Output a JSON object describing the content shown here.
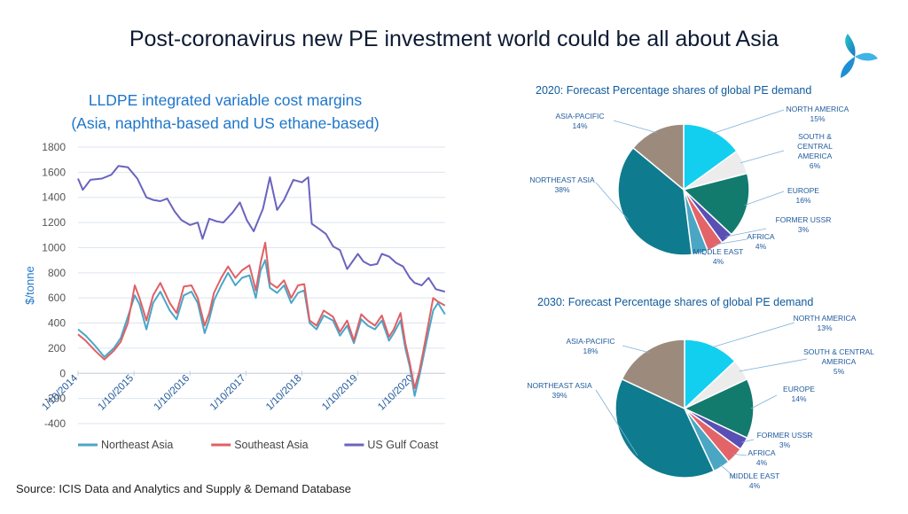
{
  "slide": {
    "title": "Post-coronavirus new PE investment world could be all about Asia",
    "source": "Source: ICIS Data and Analytics and Supply & Demand Database"
  },
  "colors": {
    "northeast_asia": "#4aa6c8",
    "southeast_asia": "#e06064",
    "us_gulf": "#6a64be",
    "pie_north_america": "#12cff0",
    "pie_south_central_america": "#ececec",
    "pie_europe": "#137a6e",
    "pie_former_ussr": "#5a4fb5",
    "pie_africa": "#e36468",
    "pie_middle_east": "#4ba6c4",
    "pie_northeast_asia": "#0e7c8e",
    "pie_asia_pacific": "#9c8b7d"
  },
  "chart_data": [
    {
      "type": "line",
      "title": "LLDPE integrated variable cost margins (Asia, naphtha-based and US ethane-based)",
      "title_lines": [
        "LLDPE integrated variable cost margins",
        "(Asia, naphtha-based and US ethane-based)"
      ],
      "ylabel": "$/tonne",
      "ylim": [
        -400,
        1800
      ],
      "yticks": [
        -400,
        -200,
        0,
        200,
        400,
        600,
        800,
        1000,
        1200,
        1400,
        1600,
        1800
      ],
      "xlim": [
        "2014-01-10",
        "2020-08-01"
      ],
      "xticks": [
        "2014-01-10",
        "2015-01-10",
        "2016-01-10",
        "2017-01-10",
        "2018-01-10",
        "2019-01-10",
        "2020-01-10"
      ],
      "xtick_labels": [
        "1/10/2014",
        "1/10/2015",
        "1/10/2016",
        "1/10/2017",
        "1/10/2018",
        "1/10/2019",
        "1/10/2020"
      ],
      "grid": true,
      "legend": "bottom",
      "series": [
        {
          "name": "Northeast Asia",
          "color_key": "northeast_asia",
          "points": [
            [
              "2014-01-10",
              350
            ],
            [
              "2014-03-01",
              300
            ],
            [
              "2014-05-01",
              220
            ],
            [
              "2014-07-01",
              130
            ],
            [
              "2014-09-01",
              200
            ],
            [
              "2014-10-15",
              280
            ],
            [
              "2014-12-01",
              450
            ],
            [
              "2015-01-15",
              620
            ],
            [
              "2015-02-15",
              550
            ],
            [
              "2015-04-01",
              350
            ],
            [
              "2015-05-15",
              560
            ],
            [
              "2015-07-01",
              650
            ],
            [
              "2015-09-01",
              500
            ],
            [
              "2015-10-15",
              430
            ],
            [
              "2015-12-01",
              620
            ],
            [
              "2016-01-20",
              650
            ],
            [
              "2016-03-01",
              560
            ],
            [
              "2016-04-15",
              320
            ],
            [
              "2016-05-15",
              430
            ],
            [
              "2016-06-15",
              580
            ],
            [
              "2016-08-01",
              700
            ],
            [
              "2016-09-15",
              800
            ],
            [
              "2016-11-01",
              700
            ],
            [
              "2016-12-15",
              760
            ],
            [
              "2017-02-01",
              780
            ],
            [
              "2017-03-15",
              600
            ],
            [
              "2017-04-15",
              820
            ],
            [
              "2017-05-15",
              900
            ],
            [
              "2017-06-15",
              680
            ],
            [
              "2017-08-01",
              640
            ],
            [
              "2017-09-15",
              700
            ],
            [
              "2017-11-01",
              560
            ],
            [
              "2017-12-15",
              640
            ],
            [
              "2018-01-25",
              660
            ],
            [
              "2018-03-01",
              400
            ],
            [
              "2018-04-15",
              350
            ],
            [
              "2018-06-01",
              460
            ],
            [
              "2018-08-01",
              420
            ],
            [
              "2018-09-15",
              300
            ],
            [
              "2018-11-01",
              380
            ],
            [
              "2018-12-15",
              240
            ],
            [
              "2019-02-01",
              430
            ],
            [
              "2019-03-15",
              380
            ],
            [
              "2019-05-01",
              350
            ],
            [
              "2019-06-15",
              420
            ],
            [
              "2019-08-01",
              260
            ],
            [
              "2019-09-01",
              320
            ],
            [
              "2019-10-15",
              420
            ],
            [
              "2019-11-15",
              200
            ],
            [
              "2019-12-15",
              50
            ],
            [
              "2020-01-15",
              -180
            ],
            [
              "2020-02-15",
              -20
            ],
            [
              "2020-03-15",
              150
            ],
            [
              "2020-04-15",
              330
            ],
            [
              "2020-05-15",
              500
            ],
            [
              "2020-06-15",
              560
            ],
            [
              "2020-07-31",
              470
            ]
          ]
        },
        {
          "name": "Southeast Asia",
          "color_key": "southeast_asia",
          "points": [
            [
              "2014-01-10",
              310
            ],
            [
              "2014-03-01",
              260
            ],
            [
              "2014-05-01",
              180
            ],
            [
              "2014-07-01",
              110
            ],
            [
              "2014-09-01",
              180
            ],
            [
              "2014-10-15",
              250
            ],
            [
              "2014-12-01",
              400
            ],
            [
              "2015-01-15",
              700
            ],
            [
              "2015-02-15",
              600
            ],
            [
              "2015-04-01",
              420
            ],
            [
              "2015-05-15",
              620
            ],
            [
              "2015-07-01",
              720
            ],
            [
              "2015-09-01",
              560
            ],
            [
              "2015-10-15",
              480
            ],
            [
              "2015-12-01",
              690
            ],
            [
              "2016-01-20",
              700
            ],
            [
              "2016-03-01",
              600
            ],
            [
              "2016-04-15",
              380
            ],
            [
              "2016-05-15",
              480
            ],
            [
              "2016-06-15",
              640
            ],
            [
              "2016-08-01",
              760
            ],
            [
              "2016-09-15",
              850
            ],
            [
              "2016-11-01",
              760
            ],
            [
              "2016-12-15",
              820
            ],
            [
              "2017-02-01",
              860
            ],
            [
              "2017-03-15",
              660
            ],
            [
              "2017-04-15",
              880
            ],
            [
              "2017-05-15",
              1040
            ],
            [
              "2017-06-15",
              720
            ],
            [
              "2017-08-01",
              680
            ],
            [
              "2017-09-15",
              740
            ],
            [
              "2017-11-01",
              600
            ],
            [
              "2017-12-15",
              700
            ],
            [
              "2018-01-25",
              710
            ],
            [
              "2018-03-01",
              420
            ],
            [
              "2018-04-15",
              380
            ],
            [
              "2018-06-01",
              500
            ],
            [
              "2018-08-01",
              450
            ],
            [
              "2018-09-15",
              330
            ],
            [
              "2018-11-01",
              420
            ],
            [
              "2018-12-15",
              260
            ],
            [
              "2019-02-01",
              470
            ],
            [
              "2019-03-15",
              420
            ],
            [
              "2019-05-01",
              380
            ],
            [
              "2019-06-15",
              460
            ],
            [
              "2019-08-01",
              290
            ],
            [
              "2019-09-01",
              350
            ],
            [
              "2019-10-15",
              480
            ],
            [
              "2019-11-15",
              240
            ],
            [
              "2019-12-15",
              80
            ],
            [
              "2020-01-15",
              -120
            ],
            [
              "2020-02-15",
              20
            ],
            [
              "2020-03-15",
              200
            ],
            [
              "2020-04-15",
              400
            ],
            [
              "2020-05-15",
              600
            ],
            [
              "2020-06-15",
              570
            ],
            [
              "2020-07-31",
              540
            ]
          ]
        },
        {
          "name": "US Gulf Coast",
          "color_key": "us_gulf",
          "points": [
            [
              "2014-01-10",
              1550
            ],
            [
              "2014-02-10",
              1460
            ],
            [
              "2014-04-01",
              1540
            ],
            [
              "2014-06-15",
              1550
            ],
            [
              "2014-08-15",
              1580
            ],
            [
              "2014-10-01",
              1650
            ],
            [
              "2014-12-01",
              1640
            ],
            [
              "2015-02-01",
              1550
            ],
            [
              "2015-04-01",
              1400
            ],
            [
              "2015-05-15",
              1380
            ],
            [
              "2015-07-01",
              1370
            ],
            [
              "2015-08-15",
              1390
            ],
            [
              "2015-10-01",
              1290
            ],
            [
              "2015-11-15",
              1220
            ],
            [
              "2016-01-10",
              1180
            ],
            [
              "2016-03-01",
              1200
            ],
            [
              "2016-04-01",
              1070
            ],
            [
              "2016-05-15",
              1230
            ],
            [
              "2016-07-01",
              1210
            ],
            [
              "2016-08-15",
              1200
            ],
            [
              "2016-10-15",
              1280
            ],
            [
              "2016-12-01",
              1360
            ],
            [
              "2017-01-15",
              1220
            ],
            [
              "2017-03-01",
              1130
            ],
            [
              "2017-05-01",
              1310
            ],
            [
              "2017-06-15",
              1560
            ],
            [
              "2017-08-01",
              1300
            ],
            [
              "2017-09-15",
              1380
            ],
            [
              "2017-11-15",
              1540
            ],
            [
              "2018-01-10",
              1520
            ],
            [
              "2018-02-20",
              1560
            ],
            [
              "2018-03-15",
              1190
            ],
            [
              "2018-05-01",
              1150
            ],
            [
              "2018-06-15",
              1110
            ],
            [
              "2018-08-01",
              1010
            ],
            [
              "2018-09-15",
              980
            ],
            [
              "2018-11-01",
              830
            ],
            [
              "2019-01-10",
              950
            ],
            [
              "2019-02-15",
              890
            ],
            [
              "2019-04-01",
              860
            ],
            [
              "2019-05-15",
              870
            ],
            [
              "2019-06-15",
              950
            ],
            [
              "2019-08-01",
              930
            ],
            [
              "2019-09-15",
              880
            ],
            [
              "2019-11-01",
              850
            ],
            [
              "2019-12-15",
              760
            ],
            [
              "2020-01-15",
              720
            ],
            [
              "2020-03-01",
              700
            ],
            [
              "2020-04-15",
              760
            ],
            [
              "2020-06-01",
              670
            ],
            [
              "2020-07-31",
              650
            ]
          ]
        }
      ]
    },
    {
      "type": "pie",
      "title": "2020:  Forecast Percentage shares of global PE demand",
      "slices": [
        {
          "key": "north_america",
          "lines": [
            "NORTH AMERICA",
            "15%"
          ],
          "value": 15
        },
        {
          "key": "south_central_america",
          "lines": [
            "SOUTH &",
            "CENTRAL",
            "AMERICA",
            "6%"
          ],
          "value": 6
        },
        {
          "key": "europe",
          "lines": [
            "EUROPE",
            "16%"
          ],
          "value": 16
        },
        {
          "key": "former_ussr",
          "lines": [
            "FORMER USSR",
            "3%"
          ],
          "value": 3
        },
        {
          "key": "africa",
          "lines": [
            "AFRICA",
            "4%"
          ],
          "value": 4
        },
        {
          "key": "middle_east",
          "lines": [
            "MIDDLE EAST",
            "4%"
          ],
          "value": 4
        },
        {
          "key": "northeast_asia",
          "lines": [
            "NORTHEAST ASIA",
            "38%"
          ],
          "value": 38
        },
        {
          "key": "asia_pacific",
          "lines": [
            "ASIA-PACIFIC",
            "14%"
          ],
          "value": 14
        }
      ]
    },
    {
      "type": "pie",
      "title": "2030: Forecast Percentage shares of global PE demand",
      "slices": [
        {
          "key": "north_america",
          "lines": [
            "NORTH AMERICA",
            "13%"
          ],
          "value": 13
        },
        {
          "key": "south_central_america",
          "lines": [
            "SOUTH & CENTRAL",
            "AMERICA",
            "5%"
          ],
          "value": 5
        },
        {
          "key": "europe",
          "lines": [
            "EUROPE",
            "14%"
          ],
          "value": 14
        },
        {
          "key": "former_ussr",
          "lines": [
            "FORMER USSR",
            "3%"
          ],
          "value": 3
        },
        {
          "key": "africa",
          "lines": [
            "AFRICA",
            "4%"
          ],
          "value": 4
        },
        {
          "key": "middle_east",
          "lines": [
            "MIDDLE EAST",
            "4%"
          ],
          "value": 4
        },
        {
          "key": "northeast_asia",
          "lines": [
            "NORTHEAST ASIA",
            "39%"
          ],
          "value": 39
        },
        {
          "key": "asia_pacific",
          "lines": [
            "ASIA-PACIFIC",
            "18%"
          ],
          "value": 18
        }
      ]
    }
  ]
}
